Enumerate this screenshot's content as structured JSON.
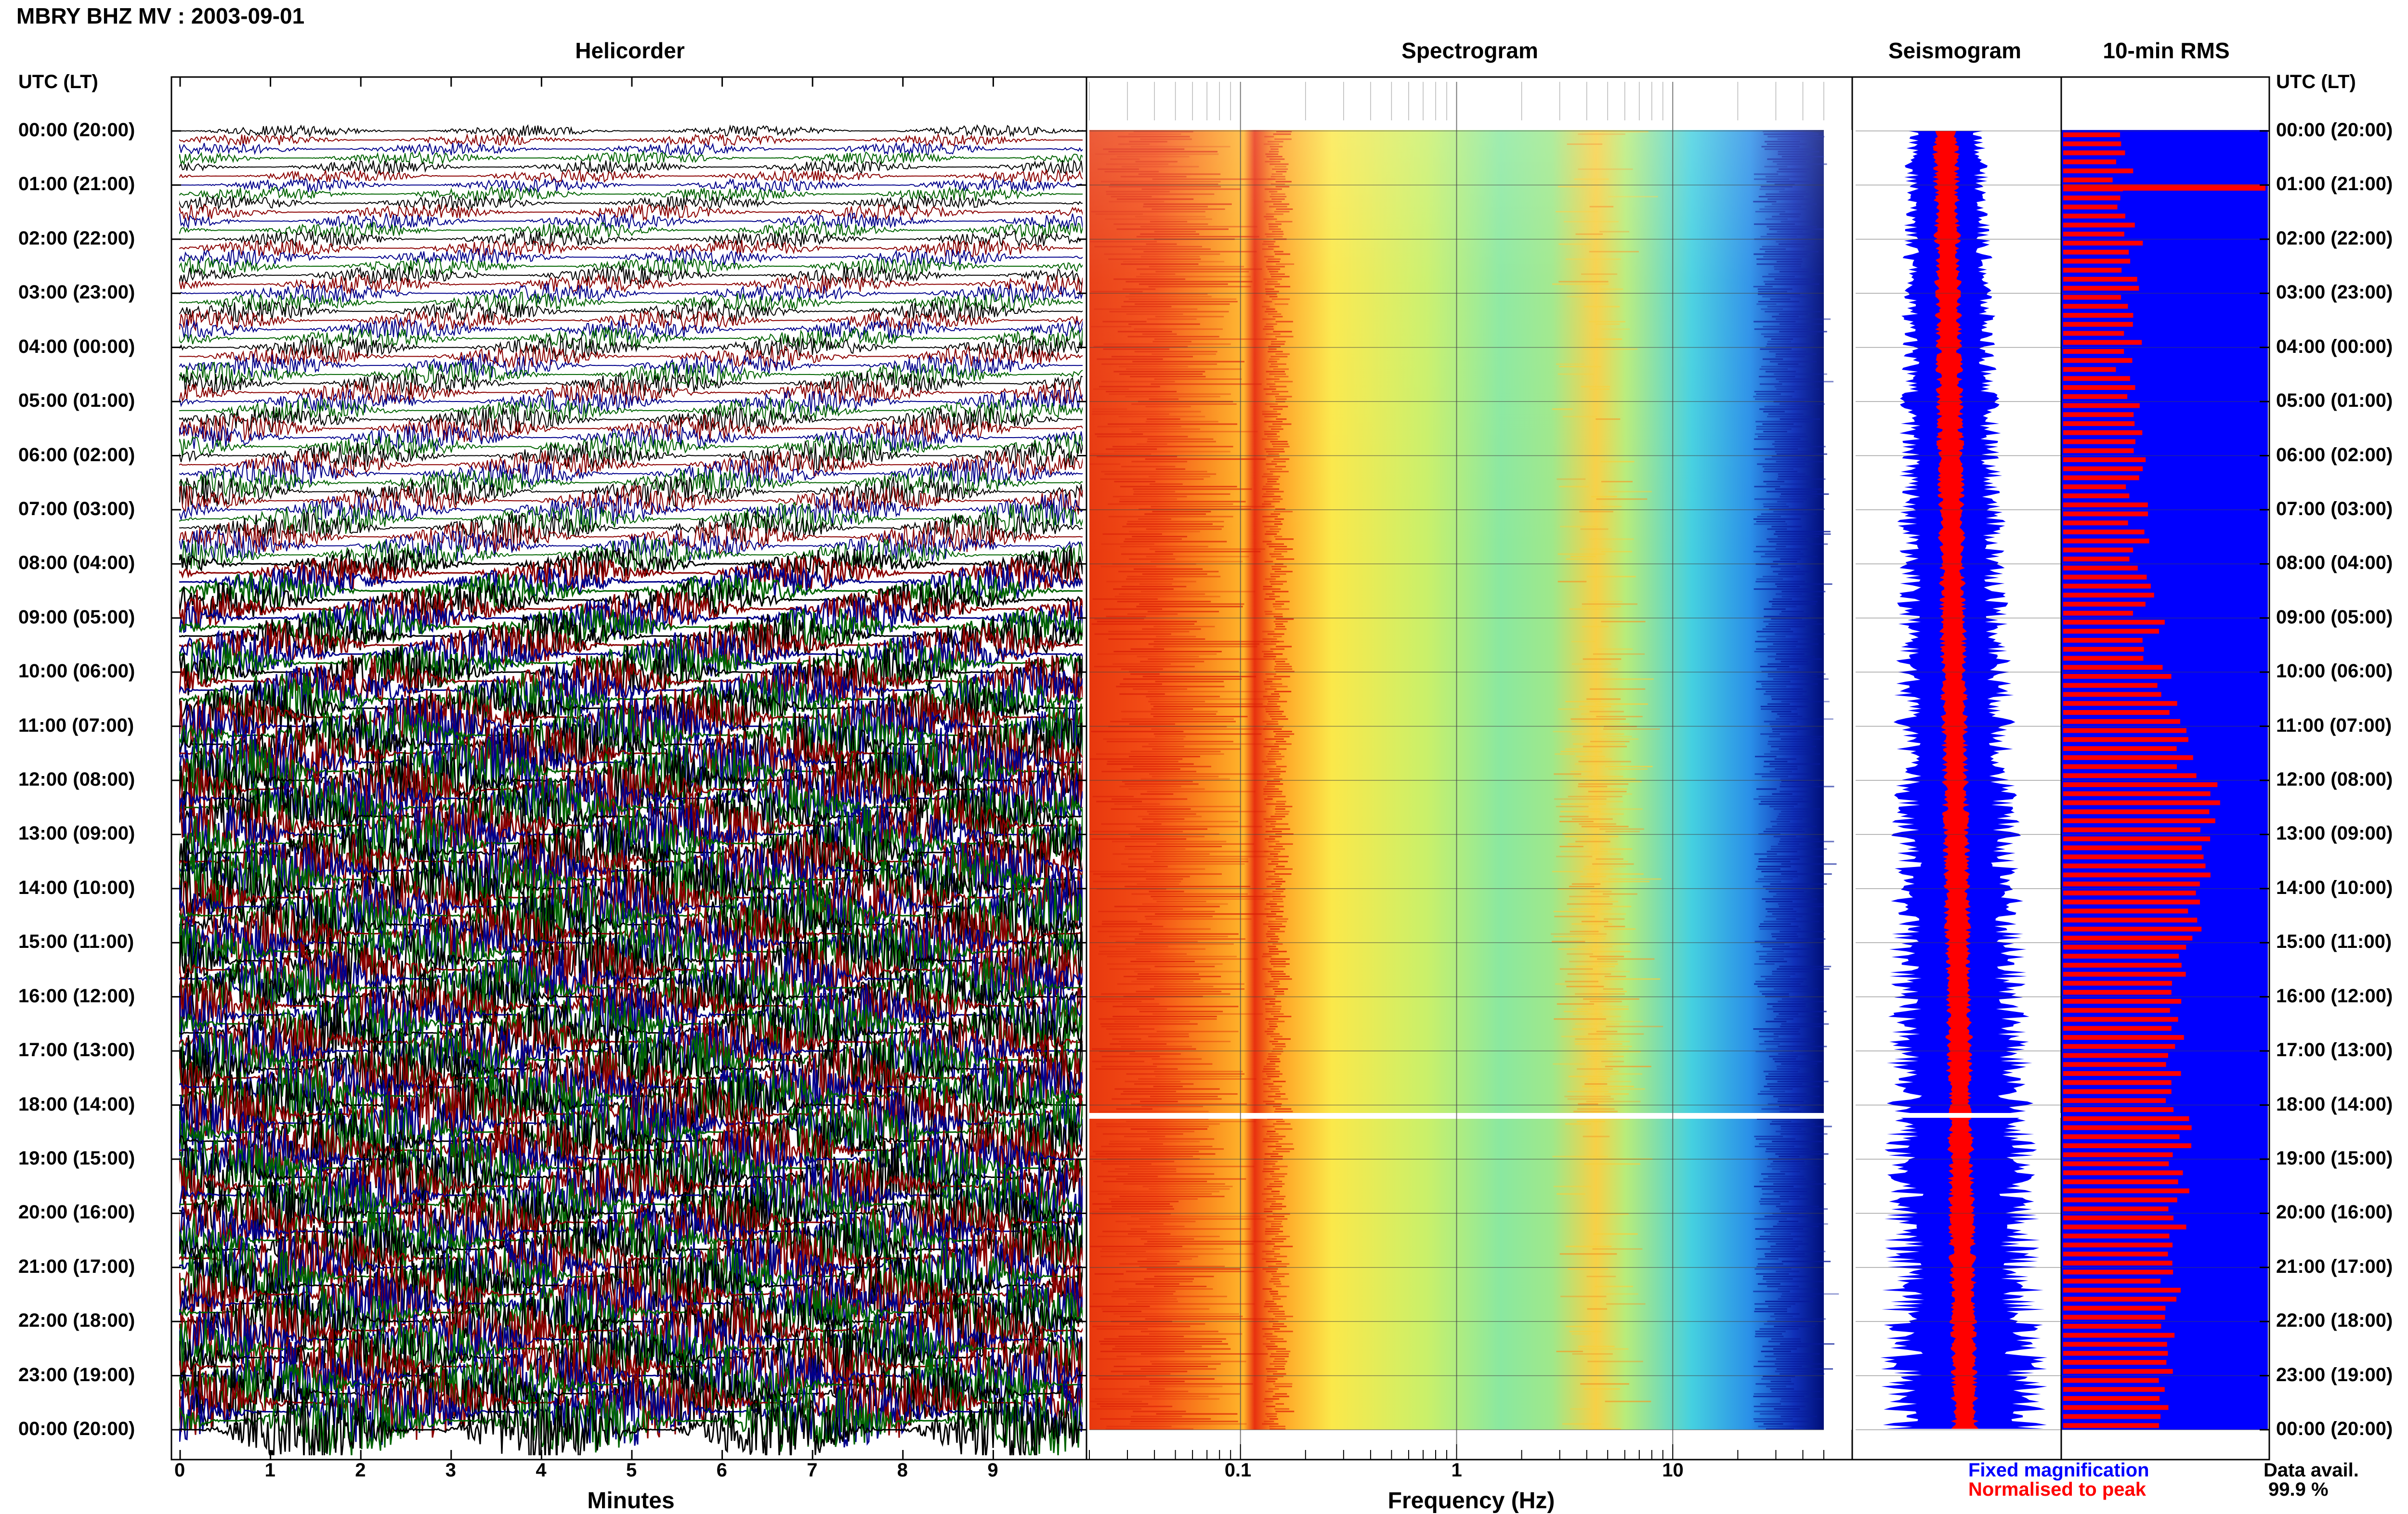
{
  "header": {
    "title": "MBRY BHZ MV : 2003-09-01"
  },
  "panels": {
    "helicorder": "Helicorder",
    "spectrogram": "Spectrogram",
    "seismogram": "Seismogram",
    "rms": "10-min RMS"
  },
  "axis_labels": {
    "time_left": "UTC (LT)",
    "time_right": "UTC (LT)",
    "minutes": "Minutes",
    "frequency": "Frequency (Hz)"
  },
  "legend": {
    "fixed": "Fixed magnification",
    "normalised": "Normalised to peak",
    "data_avail_label": "Data avail.",
    "data_avail_value": "99.9 %"
  },
  "colors": {
    "helicorder_traces": [
      "#000000",
      "#8b0000",
      "#00008b",
      "#006400"
    ],
    "fixed_magnification": "#0000ff",
    "normalised_to_peak": "#ff0000",
    "data_gap": "#ffffff"
  },
  "chart_data": [
    {
      "type": "line",
      "name": "Helicorder",
      "x_ticks": [
        "0",
        "1",
        "2",
        "3",
        "4",
        "5",
        "6",
        "7",
        "8",
        "9"
      ],
      "xlabel": "Minutes",
      "x_range": [
        0,
        10
      ],
      "y_ticks": [
        "00:00 (20:00)",
        "01:00 (21:00)",
        "02:00 (22:00)",
        "03:00 (23:00)",
        "04:00 (00:00)",
        "05:00 (01:00)",
        "06:00 (02:00)",
        "07:00 (03:00)",
        "08:00 (04:00)",
        "09:00 (05:00)",
        "10:00 (06:00)",
        "11:00 (07:00)",
        "12:00 (08:00)",
        "13:00 (09:00)",
        "14:00 (10:00)",
        "15:00 (11:00)",
        "16:00 (12:00)",
        "17:00 (13:00)",
        "18:00 (14:00)",
        "19:00 (15:00)",
        "20:00 (16:00)",
        "21:00 (17:00)",
        "22:00 (18:00)",
        "23:00 (19:00)",
        "00:00 (20:00)"
      ],
      "ylabel": "UTC (LT)",
      "traces_per_hour": 6
    },
    {
      "type": "heatmap",
      "name": "Spectrogram",
      "x_scale": "log",
      "x_ticks": [
        "0.1",
        "1",
        "10"
      ],
      "x_range": [
        0.02,
        50
      ],
      "xlabel": "Frequency (Hz)",
      "data_gap_hour": 18.2
    },
    {
      "type": "area",
      "name": "Seismogram",
      "series": [
        {
          "name": "Fixed magnification",
          "color": "#0000ff"
        },
        {
          "name": "Normalised to peak",
          "color": "#ff0000"
        }
      ]
    },
    {
      "type": "bar",
      "name": "10-min RMS",
      "orientation": "horizontal",
      "hours": [
        0,
        1,
        2,
        3,
        4,
        5,
        6,
        7,
        8,
        9,
        10,
        11,
        12,
        13,
        14,
        15,
        16,
        17,
        18,
        19,
        20,
        21,
        22,
        23
      ],
      "relative_rms": [
        0.3,
        0.32,
        0.34,
        0.33,
        0.32,
        0.34,
        0.36,
        0.38,
        0.4,
        0.45,
        0.52,
        0.62,
        0.72,
        0.7,
        0.66,
        0.58,
        0.56,
        0.56,
        0.6,
        0.58,
        0.56,
        0.54,
        0.52,
        0.5
      ],
      "spike": {
        "hour": 1.05,
        "value": 1.0
      }
    }
  ]
}
